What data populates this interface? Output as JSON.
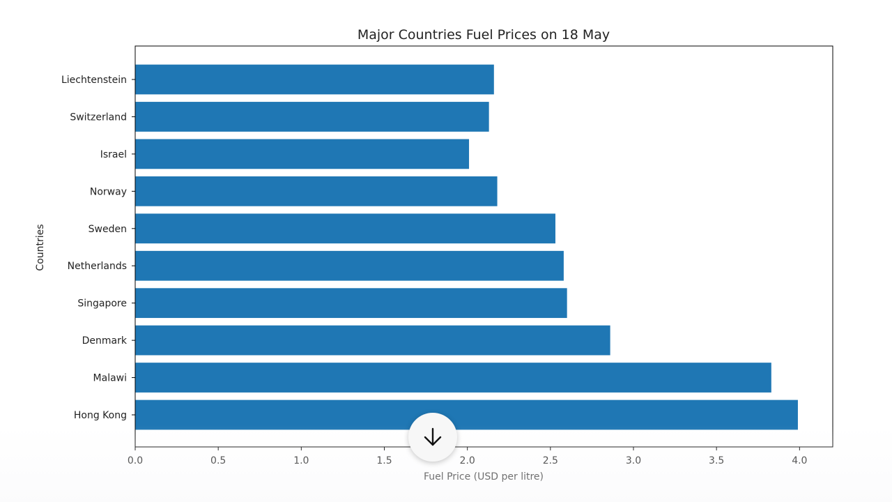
{
  "chart_data": {
    "type": "bar",
    "orientation": "horizontal",
    "title": "Major Countries Fuel Prices on 18 May",
    "xlabel": "Fuel Price (USD per litre)",
    "ylabel": "Countries",
    "categories": [
      "Hong Kong",
      "Malawi",
      "Denmark",
      "Singapore",
      "Netherlands",
      "Sweden",
      "Norway",
      "Israel",
      "Switzerland",
      "Liechtenstein"
    ],
    "values": [
      3.99,
      3.83,
      2.86,
      2.6,
      2.58,
      2.53,
      2.18,
      2.01,
      2.13,
      2.16
    ],
    "xlim": [
      0,
      4.2
    ],
    "xticks": [
      "0.0",
      "0.5",
      "1.0",
      "1.5",
      "2.0",
      "2.5",
      "3.0",
      "3.5",
      "4.0"
    ],
    "bar_color": "#1f77b4",
    "grid": false,
    "legend": false
  },
  "overlay": {
    "scroll_button_icon": "arrow-down-icon"
  }
}
